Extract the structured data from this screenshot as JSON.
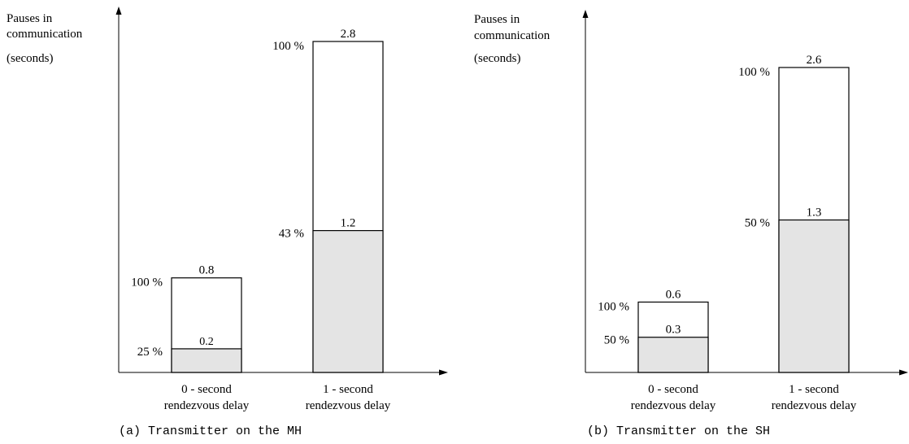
{
  "chart_data": [
    {
      "type": "bar",
      "ylabel_lines": [
        "Pauses  in",
        "communication",
        "(seconds)"
      ],
      "categories": [
        [
          "0 - second",
          "rendezvous delay"
        ],
        [
          "1 - second",
          "rendezvous delay"
        ]
      ],
      "bars": [
        {
          "total": 0.8,
          "total_label": "0.8",
          "total_pct": "100 %",
          "part": 0.2,
          "part_label": "0.2",
          "part_pct": "25 %"
        },
        {
          "total": 2.8,
          "total_label": "2.8",
          "total_pct": "100 %",
          "part": 1.2,
          "part_label": "1.2",
          "part_pct": "43 %"
        }
      ],
      "colors": {
        "part_fill": "#e4e4e4",
        "total_fill": "#ffffff",
        "stroke": "#000000"
      },
      "caption": "(a) Transmitter on the MH"
    },
    {
      "type": "bar",
      "ylabel_lines": [
        "Pauses  in",
        "communication",
        "(seconds)"
      ],
      "categories": [
        [
          "0 - second",
          "rendezvous delay"
        ],
        [
          "1 - second",
          "rendezvous delay"
        ]
      ],
      "bars": [
        {
          "total": 0.6,
          "total_label": "0.6",
          "total_pct": "100 %",
          "part": 0.3,
          "part_label": "0.3",
          "part_pct": "50 %"
        },
        {
          "total": 2.6,
          "total_label": "2.6",
          "total_pct": "100 %",
          "part": 1.3,
          "part_label": "1.3",
          "part_pct": "50 %"
        }
      ],
      "colors": {
        "part_fill": "#e4e4e4",
        "total_fill": "#ffffff",
        "stroke": "#000000"
      },
      "caption": "(b) Transmitter on the SH"
    }
  ]
}
